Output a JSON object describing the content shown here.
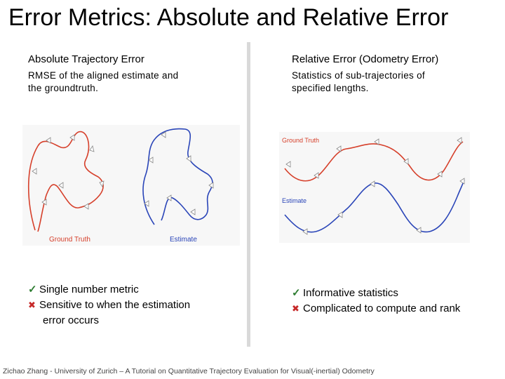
{
  "slide": {
    "title": "Error Metrics: Absolute and Relative Error",
    "footer": "Zichao Zhang - University of Zurich – A Tutorial on Quantitative Trajectory Evaluation for Visual(-inertial) Odometry"
  },
  "absolute": {
    "heading": "Absolute Trajectory Error",
    "desc_line1": "RMSE of the aligned estimate and",
    "desc_line2": "the groundtruth.",
    "figure": {
      "gt_label": "Ground Truth",
      "est_label": "Estimate"
    },
    "pros": [
      "Single number metric"
    ],
    "cons": [
      "Sensitive to when the estimation",
      "error occurs"
    ]
  },
  "relative": {
    "heading": "Relative Error (Odometry Error)",
    "desc_line1": "Statistics of sub-trajectories of",
    "desc_line2": "specified lengths.",
    "figure": {
      "gt_label": "Ground Truth",
      "est_label": "Estimate"
    },
    "pros": [
      "Informative statistics"
    ],
    "cons": [
      "Complicated to compute and rank"
    ]
  },
  "colors": {
    "ground_truth": "#d6402b",
    "estimate": "#2a45b8",
    "check": "#2e7d32",
    "cross": "#c62828"
  },
  "icons": {
    "pro": "check-icon",
    "con": "cross-icon"
  }
}
